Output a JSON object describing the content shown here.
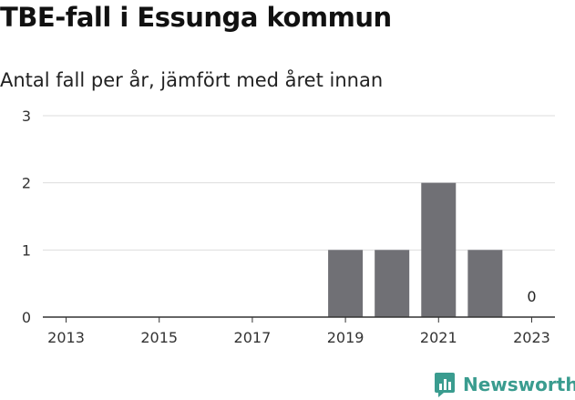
{
  "title": "TBE-fall i Essunga kommun",
  "subtitle": "Antal fall per år, jämfört med året innan",
  "brand": "Newsworthy",
  "colors": {
    "bar": "#707075",
    "grid": "#dddddd",
    "axis": "#333333",
    "brand": "#3a9c8f"
  },
  "chart_data": {
    "type": "bar",
    "categories": [
      "2013",
      "2014",
      "2015",
      "2016",
      "2017",
      "2018",
      "2019",
      "2020",
      "2021",
      "2022",
      "2023"
    ],
    "values": [
      0,
      0,
      0,
      0,
      0,
      0,
      1,
      1,
      2,
      1,
      0
    ],
    "x_tick_labels": [
      "2013",
      "2015",
      "2017",
      "2019",
      "2021",
      "2023"
    ],
    "y_ticks": [
      0,
      1,
      2,
      3
    ],
    "ylim": [
      0,
      3
    ],
    "annotations": [
      {
        "category": "2023",
        "text": "0"
      }
    ],
    "grid": true,
    "legend": "none"
  }
}
